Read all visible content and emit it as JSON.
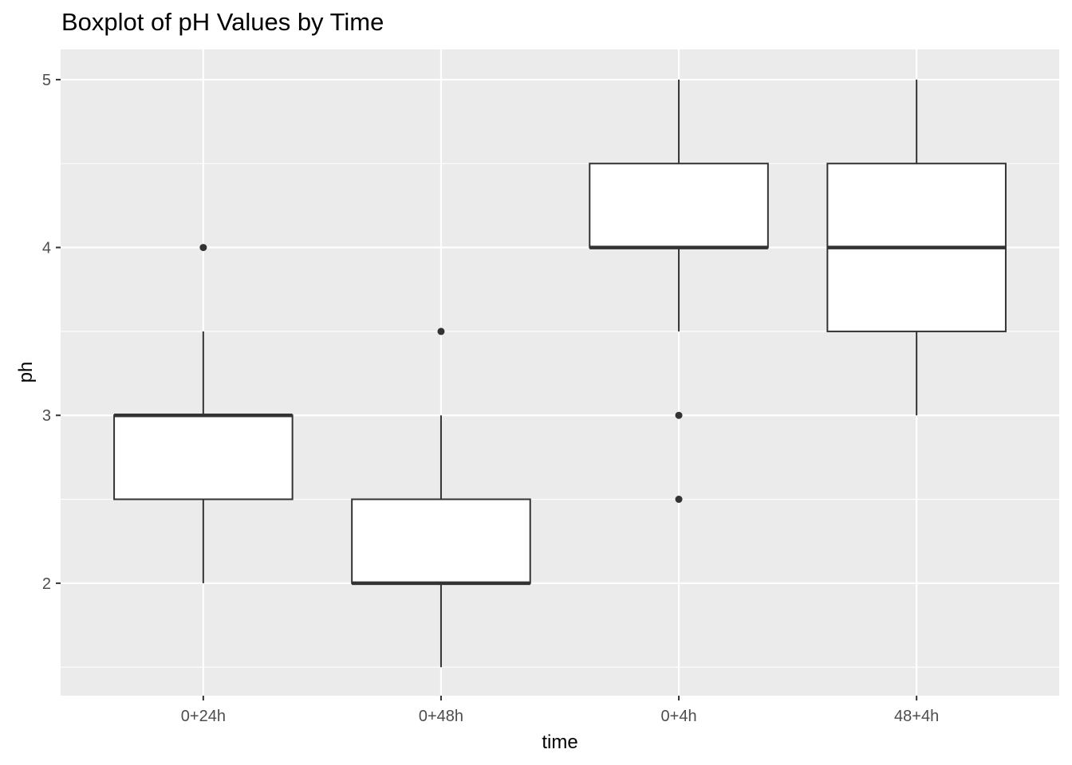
{
  "chart_data": {
    "type": "boxplot",
    "title": "Boxplot of pH Values by Time",
    "xlabel": "time",
    "ylabel": "ph",
    "ylim": [
      1.33,
      5.18
    ],
    "y_ticks": [
      2,
      3,
      4,
      5
    ],
    "grid": true,
    "categories": [
      "0+24h",
      "0+48h",
      "0+4h",
      "48+4h"
    ],
    "boxes": [
      {
        "category": "0+24h",
        "whisker_low": 2.0,
        "q1": 2.5,
        "median": 3.0,
        "q3": 3.0,
        "whisker_high": 3.5,
        "outliers": [
          4.0
        ]
      },
      {
        "category": "0+48h",
        "whisker_low": 1.5,
        "q1": 2.0,
        "median": 2.0,
        "q3": 2.5,
        "whisker_high": 3.0,
        "outliers": [
          3.5
        ]
      },
      {
        "category": "0+4h",
        "whisker_low": 3.5,
        "q1": 4.0,
        "median": 4.0,
        "q3": 4.5,
        "whisker_high": 5.0,
        "outliers": [
          3.0,
          2.5
        ]
      },
      {
        "category": "48+4h",
        "whisker_low": 3.0,
        "q1": 3.5,
        "median": 4.0,
        "q3": 4.5,
        "whisker_high": 5.0,
        "outliers": []
      }
    ],
    "colors": {
      "panel_background": "#ebebeb",
      "gridline": "#ffffff",
      "box_fill": "#ffffff",
      "box_stroke": "#333333",
      "outlier": "#333333",
      "tick_text": "#4d4d4d"
    }
  }
}
